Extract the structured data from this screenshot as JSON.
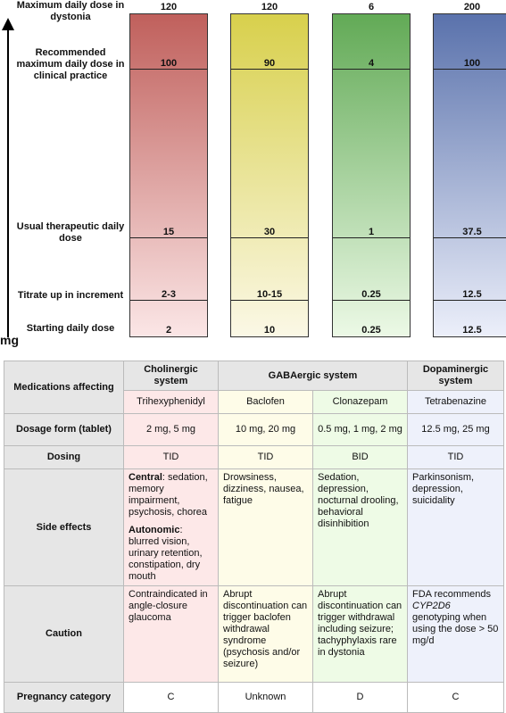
{
  "axis": {
    "unit": "mg"
  },
  "levels": [
    {
      "key": "max",
      "label": "Maximum daily dose in dystonia"
    },
    {
      "key": "recmax",
      "label": "Recommended maximum daily dose in clinical practice"
    },
    {
      "key": "usual",
      "label": "Usual therapeutic daily dose"
    },
    {
      "key": "titrate",
      "label": "Titrate up in increment"
    },
    {
      "key": "start",
      "label": "Starting daily dose"
    }
  ],
  "bars": [
    {
      "drug": "Trihexyphenidyl",
      "max": "120",
      "recmax": "100",
      "usual": "15",
      "titrate": "2-3",
      "start": "2",
      "color_top": "#c0605c",
      "color_bottom": "#fbe6e6"
    },
    {
      "drug": "Baclofen",
      "max": "120",
      "recmax": "90",
      "usual": "30",
      "titrate": "10-15",
      "start": "10",
      "color_top": "#d8d04c",
      "color_bottom": "#fbf8e6"
    },
    {
      "drug": "Clonazepam",
      "max": "6",
      "recmax": "4",
      "usual": "1",
      "titrate": "0.25",
      "start": "0.25",
      "color_top": "#62aa56",
      "color_bottom": "#ecf9e6"
    },
    {
      "drug": "Tetrabenazine",
      "max": "200",
      "recmax": "100",
      "usual": "37.5",
      "titrate": "12.5",
      "start": "12.5",
      "color_top": "#5a72ac",
      "color_bottom": "#eceffa"
    }
  ],
  "table": {
    "row_medications": "Medications affecting",
    "groups": {
      "cholinergic": "Cholinergic system",
      "gabaergic": "GABAergic system",
      "dopaminergic": "Dopaminergic system"
    },
    "drugs": [
      "Trihexyphenidyl",
      "Baclofen",
      "Clonazepam",
      "Tetrabenazine"
    ],
    "row_dosage": "Dosage form (tablet)",
    "dosage": [
      "2 mg, 5 mg",
      "10 mg, 20 mg",
      "0.5 mg, 1 mg, 2 mg",
      "12.5 mg, 25 mg"
    ],
    "row_dosing": "Dosing",
    "dosing": [
      "TID",
      "TID",
      "BID",
      "TID"
    ],
    "row_side": "Side effects",
    "side": {
      "central_label": "Central",
      "central_text": ": sedation, memory impairment, psychosis, chorea",
      "autonomic_label": "Autonomic",
      "autonomic_text": ": blurred vision, urinary retention, constipation, dry mouth",
      "baclofen": "Drowsiness, dizziness, nausea, fatigue",
      "clonazepam": "Sedation, depression, nocturnal drooling, behavioral disinhibition",
      "tetrabenazine": "Parkinsonism, depression, suicidality"
    },
    "row_caution": "Caution",
    "caution": {
      "trihexyphenidyl": "Contraindicated in angle-closure glaucoma",
      "baclofen": "Abrupt discontinuation can trigger baclofen withdrawal syndrome (psychosis and/or seizure)",
      "clonazepam": "Abrupt discontinuation can trigger withdrawal including seizure; tachyphylaxis rare in dystonia",
      "tetra_pre": "FDA recommends ",
      "tetra_gene": "CYP2D6",
      "tetra_post": " genotyping when using the dose > 50 mg/d"
    },
    "row_pregnancy": "Pregnancy category",
    "pregnancy": [
      "C",
      "Unknown",
      "D",
      "C"
    ]
  }
}
